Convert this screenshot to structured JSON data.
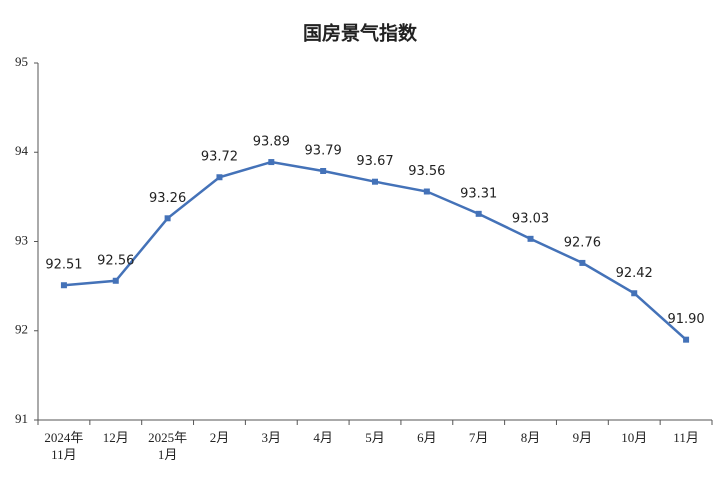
{
  "chart_data": {
    "type": "line",
    "title": "国房景气指数",
    "categories": [
      "2024年\n11月",
      "12月",
      "2025年\n1月",
      "2月",
      "3月",
      "4月",
      "5月",
      "6月",
      "7月",
      "8月",
      "9月",
      "10月",
      "11月"
    ],
    "values": [
      92.51,
      92.56,
      93.26,
      93.72,
      93.89,
      93.79,
      93.67,
      93.56,
      93.31,
      93.03,
      92.76,
      92.42,
      91.9
    ],
    "value_labels": [
      "92.51",
      "92.56",
      "93.26",
      "93.72",
      "93.89",
      "93.79",
      "93.67",
      "93.56",
      "93.31",
      "93.03",
      "92.76",
      "92.42",
      "91.90"
    ],
    "color": "#4472b8",
    "ylim": [
      91,
      95
    ],
    "yticks": [
      91,
      92,
      93,
      94,
      95
    ]
  }
}
